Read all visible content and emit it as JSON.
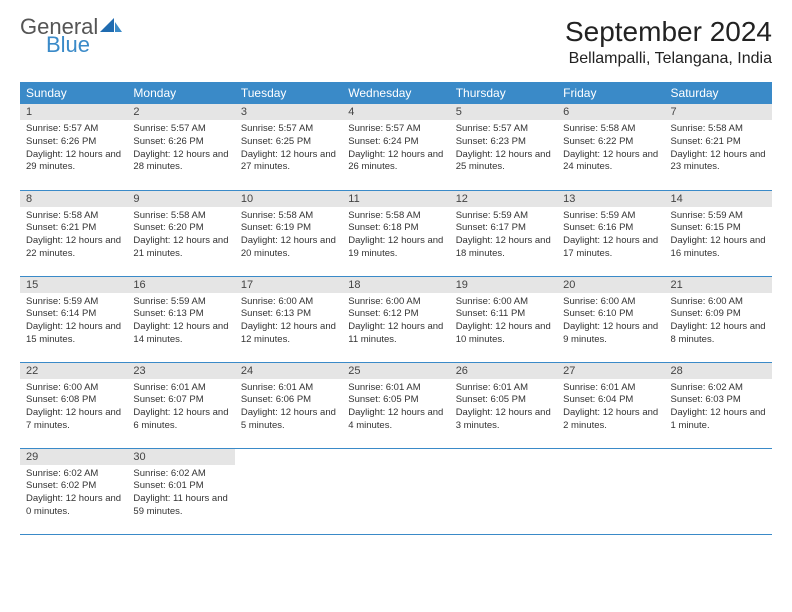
{
  "brand": {
    "part1": "General",
    "part2": "Blue"
  },
  "title": "September 2024",
  "location": "Bellampalli, Telangana, India",
  "style": {
    "header_bg": "#3a8ac8",
    "header_fg": "#ffffff",
    "daynum_bg": "#e5e5e5",
    "border_color": "#3a8ac8",
    "body_bg": "#ffffff",
    "title_fontsize": 28,
    "location_fontsize": 16,
    "dayhead_fontsize": 12,
    "daynum_fontsize": 11,
    "cell_fontsize": 9.5
  },
  "day_headers": [
    "Sunday",
    "Monday",
    "Tuesday",
    "Wednesday",
    "Thursday",
    "Friday",
    "Saturday"
  ],
  "weeks": [
    [
      {
        "n": "1",
        "sr": "5:57 AM",
        "ss": "6:26 PM",
        "dl": "12 hours and 29 minutes."
      },
      {
        "n": "2",
        "sr": "5:57 AM",
        "ss": "6:26 PM",
        "dl": "12 hours and 28 minutes."
      },
      {
        "n": "3",
        "sr": "5:57 AM",
        "ss": "6:25 PM",
        "dl": "12 hours and 27 minutes."
      },
      {
        "n": "4",
        "sr": "5:57 AM",
        "ss": "6:24 PM",
        "dl": "12 hours and 26 minutes."
      },
      {
        "n": "5",
        "sr": "5:57 AM",
        "ss": "6:23 PM",
        "dl": "12 hours and 25 minutes."
      },
      {
        "n": "6",
        "sr": "5:58 AM",
        "ss": "6:22 PM",
        "dl": "12 hours and 24 minutes."
      },
      {
        "n": "7",
        "sr": "5:58 AM",
        "ss": "6:21 PM",
        "dl": "12 hours and 23 minutes."
      }
    ],
    [
      {
        "n": "8",
        "sr": "5:58 AM",
        "ss": "6:21 PM",
        "dl": "12 hours and 22 minutes."
      },
      {
        "n": "9",
        "sr": "5:58 AM",
        "ss": "6:20 PM",
        "dl": "12 hours and 21 minutes."
      },
      {
        "n": "10",
        "sr": "5:58 AM",
        "ss": "6:19 PM",
        "dl": "12 hours and 20 minutes."
      },
      {
        "n": "11",
        "sr": "5:58 AM",
        "ss": "6:18 PM",
        "dl": "12 hours and 19 minutes."
      },
      {
        "n": "12",
        "sr": "5:59 AM",
        "ss": "6:17 PM",
        "dl": "12 hours and 18 minutes."
      },
      {
        "n": "13",
        "sr": "5:59 AM",
        "ss": "6:16 PM",
        "dl": "12 hours and 17 minutes."
      },
      {
        "n": "14",
        "sr": "5:59 AM",
        "ss": "6:15 PM",
        "dl": "12 hours and 16 minutes."
      }
    ],
    [
      {
        "n": "15",
        "sr": "5:59 AM",
        "ss": "6:14 PM",
        "dl": "12 hours and 15 minutes."
      },
      {
        "n": "16",
        "sr": "5:59 AM",
        "ss": "6:13 PM",
        "dl": "12 hours and 14 minutes."
      },
      {
        "n": "17",
        "sr": "6:00 AM",
        "ss": "6:13 PM",
        "dl": "12 hours and 12 minutes."
      },
      {
        "n": "18",
        "sr": "6:00 AM",
        "ss": "6:12 PM",
        "dl": "12 hours and 11 minutes."
      },
      {
        "n": "19",
        "sr": "6:00 AM",
        "ss": "6:11 PM",
        "dl": "12 hours and 10 minutes."
      },
      {
        "n": "20",
        "sr": "6:00 AM",
        "ss": "6:10 PM",
        "dl": "12 hours and 9 minutes."
      },
      {
        "n": "21",
        "sr": "6:00 AM",
        "ss": "6:09 PM",
        "dl": "12 hours and 8 minutes."
      }
    ],
    [
      {
        "n": "22",
        "sr": "6:00 AM",
        "ss": "6:08 PM",
        "dl": "12 hours and 7 minutes."
      },
      {
        "n": "23",
        "sr": "6:01 AM",
        "ss": "6:07 PM",
        "dl": "12 hours and 6 minutes."
      },
      {
        "n": "24",
        "sr": "6:01 AM",
        "ss": "6:06 PM",
        "dl": "12 hours and 5 minutes."
      },
      {
        "n": "25",
        "sr": "6:01 AM",
        "ss": "6:05 PM",
        "dl": "12 hours and 4 minutes."
      },
      {
        "n": "26",
        "sr": "6:01 AM",
        "ss": "6:05 PM",
        "dl": "12 hours and 3 minutes."
      },
      {
        "n": "27",
        "sr": "6:01 AM",
        "ss": "6:04 PM",
        "dl": "12 hours and 2 minutes."
      },
      {
        "n": "28",
        "sr": "6:02 AM",
        "ss": "6:03 PM",
        "dl": "12 hours and 1 minute."
      }
    ],
    [
      {
        "n": "29",
        "sr": "6:02 AM",
        "ss": "6:02 PM",
        "dl": "12 hours and 0 minutes."
      },
      {
        "n": "30",
        "sr": "6:02 AM",
        "ss": "6:01 PM",
        "dl": "11 hours and 59 minutes."
      },
      null,
      null,
      null,
      null,
      null
    ]
  ],
  "labels": {
    "sunrise": "Sunrise:",
    "sunset": "Sunset:",
    "daylight": "Daylight:"
  }
}
